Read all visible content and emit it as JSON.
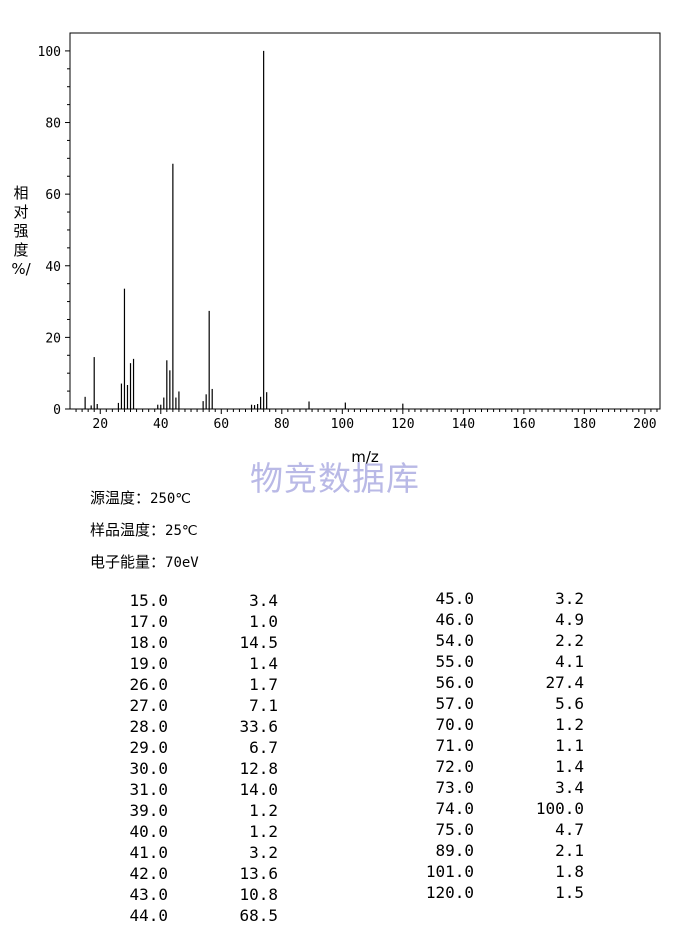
{
  "chart_data": {
    "type": "bar",
    "xlabel": "m/z",
    "ylabel_chars": [
      "相",
      "对",
      "强",
      "度",
      "%/"
    ],
    "xlim": [
      10,
      205
    ],
    "ylim": [
      0,
      105
    ],
    "xticks": [
      "20",
      "40",
      "60",
      "80",
      "100",
      "120",
      "140",
      "160",
      "180",
      "200"
    ],
    "xtick_values": [
      20,
      40,
      60,
      80,
      100,
      120,
      140,
      160,
      180,
      200
    ],
    "yticks": [
      "0",
      "20",
      "40",
      "60",
      "80",
      "100"
    ],
    "ytick_values": [
      0,
      20,
      40,
      60,
      80,
      100
    ],
    "x": [
      15,
      17,
      18,
      19,
      26,
      27,
      28,
      29,
      30,
      31,
      39,
      40,
      41,
      42,
      43,
      44,
      45,
      46,
      54,
      55,
      56,
      57,
      70,
      71,
      72,
      73,
      74,
      75,
      89,
      101,
      120
    ],
    "values": [
      3.4,
      1.0,
      14.5,
      1.4,
      1.7,
      7.1,
      33.6,
      6.7,
      12.8,
      14.0,
      1.2,
      1.2,
      3.2,
      13.6,
      10.8,
      68.5,
      3.2,
      4.9,
      2.2,
      4.1,
      27.4,
      5.6,
      1.2,
      1.1,
      1.4,
      3.4,
      100.0,
      4.7,
      2.1,
      1.8,
      1.5
    ]
  },
  "watermark": "物竞数据库",
  "conditions": [
    {
      "label": "源温度：",
      "value": "250℃"
    },
    {
      "label": "样品温度：",
      "value": "25℃"
    },
    {
      "label": "电子能量：",
      "value": "70eV"
    }
  ],
  "peak_table": {
    "left": [
      [
        "15.0",
        "3.4"
      ],
      [
        "17.0",
        "1.0"
      ],
      [
        "18.0",
        "14.5"
      ],
      [
        "19.0",
        "1.4"
      ],
      [
        "26.0",
        "1.7"
      ],
      [
        "27.0",
        "7.1"
      ],
      [
        "28.0",
        "33.6"
      ],
      [
        "29.0",
        "6.7"
      ],
      [
        "30.0",
        "12.8"
      ],
      [
        "31.0",
        "14.0"
      ],
      [
        "39.0",
        "1.2"
      ],
      [
        "40.0",
        "1.2"
      ],
      [
        "41.0",
        "3.2"
      ],
      [
        "42.0",
        "13.6"
      ],
      [
        "43.0",
        "10.8"
      ],
      [
        "44.0",
        "68.5"
      ]
    ],
    "right": [
      [
        "45.0",
        "3.2"
      ],
      [
        "46.0",
        "4.9"
      ],
      [
        "54.0",
        "2.2"
      ],
      [
        "55.0",
        "4.1"
      ],
      [
        "56.0",
        "27.4"
      ],
      [
        "57.0",
        "5.6"
      ],
      [
        "70.0",
        "1.2"
      ],
      [
        "71.0",
        "1.1"
      ],
      [
        "72.0",
        "1.4"
      ],
      [
        "73.0",
        "3.4"
      ],
      [
        "74.0",
        "100.0"
      ],
      [
        "75.0",
        "4.7"
      ],
      [
        "89.0",
        "2.1"
      ],
      [
        "101.0",
        "1.8"
      ],
      [
        "120.0",
        "1.5"
      ]
    ]
  }
}
